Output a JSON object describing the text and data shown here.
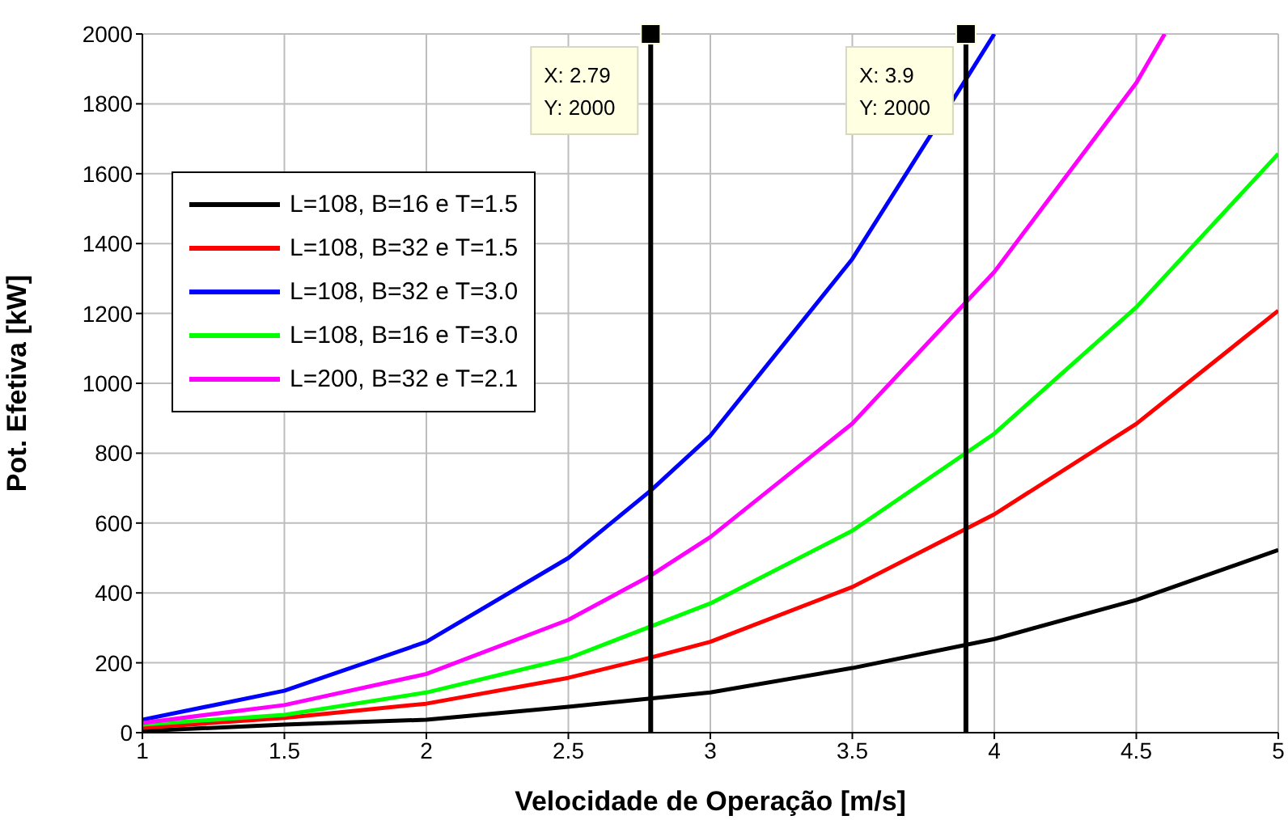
{
  "chart_data": {
    "type": "line",
    "xlabel": "Velocidade de Operação [m/s]",
    "ylabel": "Pot. Efetiva [kW]",
    "xlim": [
      1,
      5
    ],
    "xticks": [
      1,
      1.5,
      2,
      2.5,
      3,
      3.5,
      4,
      4.5,
      5
    ],
    "ylim": [
      0,
      2000
    ],
    "yticks": [
      0,
      200,
      400,
      600,
      800,
      1000,
      1200,
      1400,
      1600,
      1800,
      2000
    ],
    "grid": true,
    "legend": "top left",
    "line_style": "solid",
    "marker": "none",
    "series": [
      {
        "name": "L=108, B=16 e T=1.5",
        "color": "#000000",
        "x": [
          1,
          1.5,
          2,
          2.5,
          3,
          3.5,
          4,
          4.5,
          5
        ],
        "values": [
          5,
          23,
          37,
          74,
          115,
          185,
          268,
          380,
          523
        ]
      },
      {
        "name": "L=108, B=32 e T=1.5",
        "color": "#ff0000",
        "x": [
          1,
          1.5,
          2,
          2.5,
          2.79,
          3,
          3.5,
          4,
          4.5,
          5
        ],
        "values": [
          14,
          42,
          83,
          157,
          215,
          260,
          417,
          625,
          884,
          1208
        ]
      },
      {
        "name": "L=108, B=32 e T=3.0",
        "color": "#0000ff",
        "x": [
          1,
          1.5,
          2,
          2.5,
          2.79,
          3,
          3.5,
          3.9,
          4
        ],
        "values": [
          37,
          120,
          260,
          500,
          693,
          850,
          1356,
          1870,
          2000
        ]
      },
      {
        "name": "L=108, B=16 e T=3.0",
        "color": "#00ff00",
        "x": [
          1,
          1.5,
          2,
          2.5,
          3,
          3.5,
          4,
          4.5,
          5
        ],
        "values": [
          23,
          51,
          115,
          213,
          370,
          578,
          856,
          1218,
          1657
        ]
      },
      {
        "name": "L=200, B=32 e T=2.1",
        "color": "#ff00ff",
        "x": [
          1,
          1.5,
          2,
          2.5,
          2.79,
          3,
          3.5,
          4,
          4.5,
          4.6
        ],
        "values": [
          28,
          79,
          168,
          323,
          450,
          560,
          885,
          1319,
          1860,
          2000
        ]
      }
    ],
    "ref_lines": [
      {
        "axis": "x",
        "value": 2.79,
        "label": "X: 2.79\nY: 2000",
        "color": "#000000"
      },
      {
        "axis": "x",
        "value": 3.9,
        "label": "X: 3.9\nY: 2000",
        "color": "#000000"
      }
    ]
  }
}
